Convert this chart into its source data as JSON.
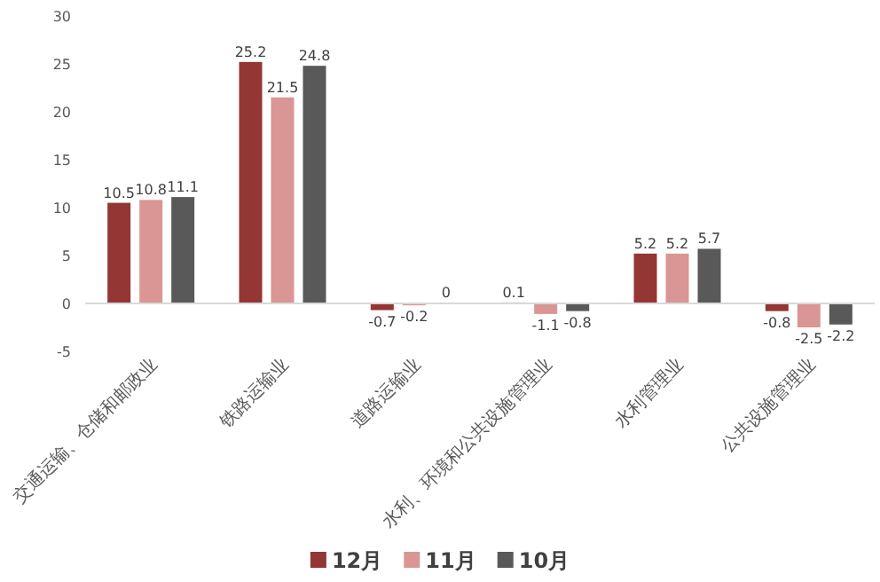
{
  "chart_data": {
    "type": "bar",
    "categories": [
      "交通运输、仓储和邮政业",
      "铁路运输业",
      "道路运输业",
      "水利、环境和公共设施管理业",
      "水利管理业",
      "公共设施管理业"
    ],
    "series": [
      {
        "name": "12月",
        "color": "#943634",
        "values": [
          10.5,
          25.2,
          -0.7,
          0.1,
          5.2,
          -0.8
        ]
      },
      {
        "name": "11月",
        "color": "#d99694",
        "values": [
          10.8,
          21.5,
          -0.2,
          -1.1,
          5.2,
          -2.5
        ]
      },
      {
        "name": "10月",
        "color": "#595959",
        "values": [
          11.1,
          24.8,
          0,
          -0.8,
          5.7,
          -2.2
        ]
      }
    ],
    "ylim": [
      -5,
      30
    ],
    "yticks": [
      -5,
      0,
      5,
      10,
      15,
      20,
      25,
      30
    ],
    "data_labels": true,
    "legend": "bottom"
  }
}
